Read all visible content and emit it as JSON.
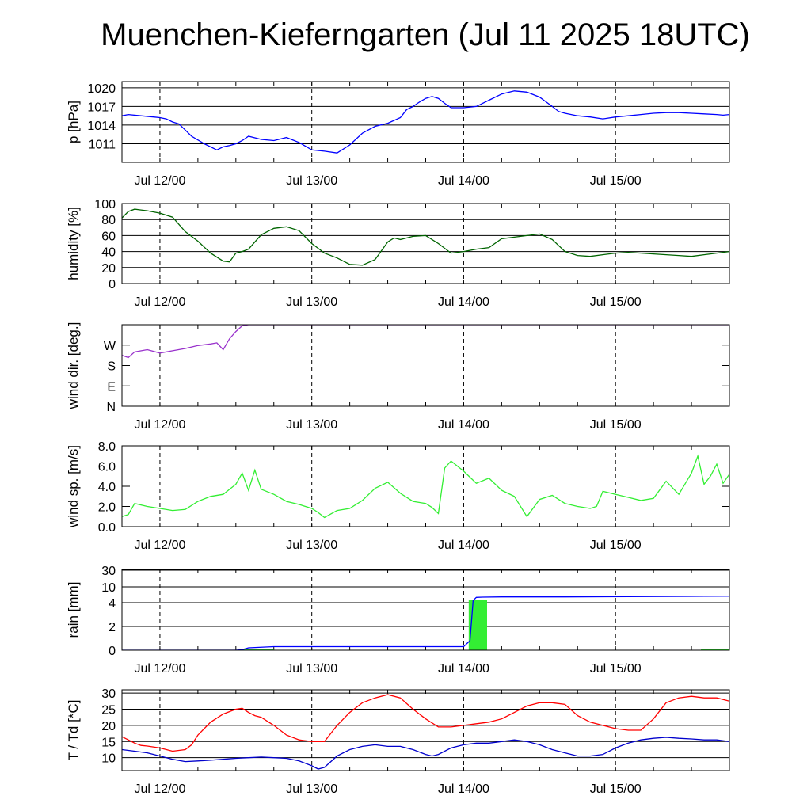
{
  "title": "Muenchen-Kieferngarten (Jul 11 2025 18UTC)",
  "chart_data": [
    {
      "type": "line",
      "ylabel": "p [hPa]",
      "ylim": [
        1008,
        1021
      ],
      "yticks": [
        1011,
        1014,
        1017,
        1020
      ],
      "ytick_labels": [
        "1011",
        "1014",
        "1017",
        "1020"
      ],
      "grid": true,
      "x_tick_labels": [
        "Jul 12/00",
        "Jul 13/00",
        "Jul 14/00",
        "Jul 15/00"
      ],
      "series": [
        {
          "color": "#0000ff",
          "x": [
            0,
            1,
            3,
            5,
            6,
            7,
            8,
            9,
            10,
            11,
            13,
            15,
            16,
            17,
            18,
            19,
            20,
            22,
            24,
            26,
            28,
            29,
            30,
            32,
            34,
            36,
            38,
            40,
            42,
            44,
            45,
            46,
            47,
            48,
            49,
            50,
            51,
            52,
            54,
            56,
            58,
            60,
            62,
            64,
            66,
            68,
            69,
            70,
            72,
            74,
            76,
            78,
            80,
            82,
            84,
            86,
            88,
            90,
            92,
            94,
            95,
            96
          ],
          "y": [
            1015.5,
            1015.7,
            1015.5,
            1015.3,
            1015.2,
            1015.0,
            1014.5,
            1014.2,
            1013.2,
            1012.2,
            1011.0,
            1010.0,
            1010.5,
            1010.7,
            1011.0,
            1011.5,
            1012.2,
            1011.7,
            1011.5,
            1012.0,
            1011.2,
            1010.6,
            1010.0,
            1009.8,
            1009.5,
            1010.8,
            1012.7,
            1013.8,
            1014.3,
            1015.2,
            1016.5,
            1017.0,
            1017.7,
            1018.3,
            1018.6,
            1018.3,
            1017.5,
            1016.8,
            1016.8,
            1017.0,
            1018.0,
            1019.0,
            1019.5,
            1019.3,
            1018.5,
            1017.0,
            1016.2,
            1015.9,
            1015.5,
            1015.3,
            1015.0,
            1015.3,
            1015.5,
            1015.7,
            1015.9,
            1016.0,
            1016.0,
            1015.9,
            1015.8,
            1015.7,
            1015.6,
            1015.7
          ]
        }
      ]
    },
    {
      "type": "line",
      "ylabel": "humidity [%]",
      "ylim": [
        0,
        100
      ],
      "yticks": [
        0,
        20,
        40,
        60,
        80,
        100
      ],
      "ytick_labels": [
        "0",
        "20",
        "40",
        "60",
        "80",
        "100"
      ],
      "grid": true,
      "x_tick_labels": [
        "Jul 12/00",
        "Jul 13/00",
        "Jul 14/00",
        "Jul 15/00"
      ],
      "series": [
        {
          "color": "#006400",
          "x": [
            0,
            1,
            2,
            3,
            4,
            6,
            8,
            10,
            12,
            14,
            16,
            17,
            18,
            19,
            20,
            22,
            24,
            26,
            28,
            30,
            32,
            34,
            36,
            38,
            40,
            42,
            43,
            44,
            46,
            48,
            50,
            52,
            54,
            56,
            58,
            60,
            62,
            64,
            66,
            68,
            70,
            72,
            74,
            76,
            78,
            80,
            82,
            84,
            86,
            88,
            90,
            92,
            94,
            96
          ],
          "y": [
            82,
            90,
            93,
            92,
            91,
            88,
            83,
            65,
            53,
            38,
            28,
            27,
            38,
            40,
            43,
            61,
            69,
            71,
            66,
            50,
            38,
            32,
            24,
            23,
            30,
            52,
            57,
            55,
            59,
            60,
            50,
            38,
            40,
            43,
            45,
            56,
            58,
            60,
            62,
            55,
            40,
            35,
            34,
            36,
            38,
            39,
            38,
            37,
            36,
            35,
            34,
            36,
            38,
            40
          ]
        }
      ]
    },
    {
      "type": "line",
      "ylabel": "wind dir. [deg.]",
      "ylim": [
        0,
        360
      ],
      "yticks": [
        0,
        90,
        180,
        270
      ],
      "ytick_labels": [
        "N",
        "E",
        "S",
        "W"
      ],
      "grid": false,
      "x_tick_labels": [
        "Jul 12/00",
        "Jul 13/00",
        "Jul 14/00",
        "Jul 15/00"
      ],
      "series": [
        {
          "color": "#9932cc",
          "x": [
            0,
            1,
            2,
            4,
            6,
            8,
            10,
            12,
            14,
            15,
            16,
            17,
            18,
            19,
            20,
            21,
            22,
            24,
            26,
            28,
            30,
            32,
            34,
            35,
            36,
            38,
            40,
            42,
            43,
            44,
            45,
            46,
            47,
            48,
            50,
            52,
            54,
            56,
            58,
            60,
            62,
            64,
            66,
            68,
            70,
            72,
            74,
            76,
            78,
            80,
            82,
            84,
            86,
            88,
            90,
            92,
            94,
            96
          ],
          "y": [
            225,
            215,
            240,
            250,
            235,
            245,
            255,
            268,
            275,
            280,
            250,
            298,
            330,
            355,
            360,
            360,
            360,
            360,
            360,
            360,
            360,
            360,
            360,
            360,
            360,
            360,
            360,
            360,
            360,
            360,
            360,
            360,
            360,
            360,
            360,
            360,
            360,
            360,
            360,
            360,
            360,
            360,
            360,
            360,
            360,
            360,
            360,
            360,
            360,
            360,
            360,
            360,
            360,
            360,
            360,
            360,
            360,
            360
          ]
        }
      ]
    },
    {
      "type": "line",
      "ylabel": "wind sp. [m/s]",
      "ylim": [
        0,
        8
      ],
      "yticks": [
        0,
        2,
        4,
        6,
        8
      ],
      "ytick_labels": [
        "0.0",
        "2.0",
        "4.0",
        "6.0",
        "8.0"
      ],
      "grid": false,
      "x_tick_labels": [
        "Jul 12/00",
        "Jul 13/00",
        "Jul 14/00",
        "Jul 15/00"
      ],
      "series": [
        {
          "color": "#33ee33",
          "x": [
            0,
            1,
            2,
            4,
            6,
            8,
            10,
            12,
            14,
            16,
            18,
            19,
            20,
            21,
            22,
            24,
            26,
            28,
            30,
            31,
            32,
            34,
            36,
            38,
            40,
            42,
            44,
            46,
            48,
            49,
            50,
            51,
            52,
            54,
            56,
            58,
            60,
            62,
            64,
            66,
            68,
            70,
            72,
            74,
            75,
            76,
            78,
            80,
            82,
            84,
            86,
            88,
            90,
            91,
            92,
            93,
            94,
            95,
            96
          ],
          "y": [
            1.0,
            1.2,
            2.3,
            2.0,
            1.8,
            1.6,
            1.7,
            2.5,
            3.0,
            3.2,
            4.2,
            5.3,
            3.6,
            5.6,
            3.7,
            3.2,
            2.5,
            2.2,
            1.8,
            1.4,
            0.9,
            1.6,
            1.8,
            2.6,
            3.8,
            4.4,
            3.3,
            2.5,
            2.3,
            1.9,
            1.3,
            5.8,
            6.5,
            5.5,
            4.3,
            4.8,
            3.6,
            3.0,
            1.0,
            2.7,
            3.1,
            2.3,
            2.0,
            1.8,
            2.0,
            3.5,
            3.2,
            2.9,
            2.6,
            2.8,
            4.5,
            3.2,
            5.3,
            7.0,
            4.2,
            5.0,
            6.2,
            4.3,
            5.2
          ]
        }
      ]
    },
    {
      "type": "bar",
      "ylabel": "rain [mm]",
      "yticks": [
        0,
        2,
        4,
        10,
        30
      ],
      "ytick_labels": [
        "0",
        "2",
        "4",
        "10",
        "30"
      ],
      "grid": true,
      "x_tick_labels": [
        "Jul 12/00",
        "Jul 13/00",
        "Jul 14/00",
        "Jul 15/00"
      ],
      "bars": {
        "color": "#33ee33",
        "x_start": [
          19.0,
          54.8,
          91.5
        ],
        "x_end": [
          24.0,
          57.7,
          96.0
        ],
        "values": [
          0.1,
          5.0,
          0.1
        ]
      },
      "series": [
        {
          "color": "#0000ff",
          "name": "cumulative",
          "x": [
            0,
            18,
            19,
            20,
            24,
            30,
            40,
            48,
            54,
            55,
            55.5,
            56,
            57,
            60,
            70,
            80,
            90,
            96
          ],
          "y": [
            0,
            0,
            0.05,
            0.2,
            0.3,
            0.3,
            0.3,
            0.3,
            0.3,
            0.8,
            4.8,
            6.0,
            6.1,
            6.2,
            6.2,
            6.3,
            6.4,
            6.5
          ]
        }
      ]
    },
    {
      "type": "line",
      "ylabel": "T / Td [*C]",
      "ylim": [
        6,
        31
      ],
      "yticks": [
        10,
        15,
        20,
        25,
        30
      ],
      "ytick_labels": [
        "10",
        "15",
        "20",
        "25",
        "30"
      ],
      "grid": true,
      "x_tick_labels": [
        "Jul 12/00",
        "Jul 13/00",
        "Jul 14/00",
        "Jul 15/00"
      ],
      "series": [
        {
          "color": "#ff0000",
          "x": [
            0,
            1,
            2,
            3,
            4,
            6,
            8,
            10,
            11,
            12,
            14,
            16,
            18,
            19,
            20,
            21,
            22,
            24,
            26,
            28,
            30,
            32,
            34,
            36,
            38,
            40,
            42,
            44,
            46,
            48,
            50,
            52,
            54,
            56,
            58,
            60,
            62,
            64,
            66,
            68,
            70,
            72,
            74,
            76,
            78,
            80,
            82,
            84,
            86,
            88,
            90,
            92,
            94,
            96
          ],
          "y": [
            16.5,
            15.5,
            14.5,
            13.8,
            13.6,
            13.0,
            12.0,
            12.5,
            14.0,
            17.0,
            21.0,
            23.5,
            25.0,
            25.3,
            24.0,
            23.0,
            22.5,
            20.0,
            17.0,
            15.5,
            15.0,
            15.0,
            20.0,
            24.0,
            27.0,
            28.5,
            29.5,
            28.5,
            25.0,
            22.0,
            19.5,
            19.5,
            20.0,
            20.5,
            21.0,
            22.0,
            24.0,
            26.0,
            27.0,
            27.0,
            26.5,
            23.0,
            21.0,
            20.0,
            19.0,
            18.5,
            18.5,
            22.0,
            27.0,
            28.5,
            29.0,
            28.5,
            28.5,
            27.5
          ]
        },
        {
          "color": "#0000cc",
          "x": [
            0,
            2,
            4,
            6,
            8,
            10,
            12,
            14,
            16,
            18,
            20,
            22,
            24,
            26,
            28,
            30,
            31,
            32,
            34,
            36,
            38,
            40,
            42,
            44,
            46,
            48,
            49,
            50,
            52,
            54,
            56,
            58,
            60,
            62,
            64,
            66,
            68,
            70,
            72,
            74,
            76,
            78,
            80,
            82,
            84,
            86,
            88,
            90,
            92,
            94,
            96
          ],
          "y": [
            12.5,
            12.0,
            11.5,
            10.5,
            9.5,
            8.8,
            9.0,
            9.2,
            9.5,
            9.8,
            10.0,
            10.2,
            10.0,
            9.8,
            9.0,
            7.5,
            6.5,
            7.0,
            10.5,
            12.5,
            13.5,
            14.0,
            13.5,
            13.5,
            12.5,
            11.0,
            10.5,
            11.0,
            13.0,
            14.0,
            14.5,
            14.5,
            15.0,
            15.5,
            15.0,
            14.0,
            12.5,
            11.5,
            10.5,
            10.5,
            11.0,
            13.0,
            14.5,
            15.5,
            16.0,
            16.3,
            16.0,
            15.8,
            15.5,
            15.5,
            15.0
          ]
        }
      ]
    }
  ]
}
